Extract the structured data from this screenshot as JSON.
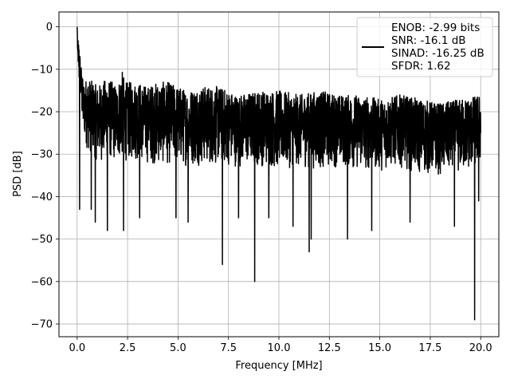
{
  "chart_data": {
    "type": "line",
    "xlabel": "Frequency [MHz]",
    "ylabel": "PSD [dB]",
    "xlim": [
      -0.9,
      20.9
    ],
    "ylim": [
      -73,
      3.5
    ],
    "xticks": [
      0.0,
      2.5,
      5.0,
      7.5,
      10.0,
      12.5,
      15.0,
      17.5,
      20.0
    ],
    "xtick_labels": [
      "0.0",
      "2.5",
      "5.0",
      "7.5",
      "10.0",
      "12.5",
      "15.0",
      "17.5",
      "20.0"
    ],
    "yticks": [
      0,
      -10,
      -20,
      -30,
      -40,
      -50,
      -60,
      -70
    ],
    "ytick_labels": [
      "0",
      "−10",
      "−20",
      "−30",
      "−40",
      "−50",
      "−60",
      "−70"
    ],
    "grid": true,
    "legend": {
      "placement": "top-right",
      "lines": [
        "ENOB: -2.99 bits",
        "SNR: -16.1 dB",
        "SINAD: -16.25 dB",
        "SFDR: 1.62"
      ]
    },
    "series": [
      {
        "color": "#000000",
        "upper_envelope": [
          [
            0.0,
            0
          ],
          [
            0.04,
            -2
          ],
          [
            0.1,
            -4
          ],
          [
            0.2,
            -9
          ],
          [
            0.3,
            -13
          ],
          [
            0.5,
            -12
          ],
          [
            0.8,
            -13
          ],
          [
            1.0,
            -14
          ],
          [
            1.5,
            -12
          ],
          [
            2.0,
            -14
          ],
          [
            2.2,
            -10
          ],
          [
            2.4,
            -13
          ],
          [
            3.0,
            -13
          ],
          [
            3.5,
            -14
          ],
          [
            4.0,
            -13
          ],
          [
            4.5,
            -13
          ],
          [
            5.0,
            -14
          ],
          [
            5.5,
            -15
          ],
          [
            6.0,
            -14
          ],
          [
            7.0,
            -14
          ],
          [
            8.0,
            -16
          ],
          [
            9.0,
            -15
          ],
          [
            10.0,
            -15
          ],
          [
            11.0,
            -16
          ],
          [
            12.0,
            -15
          ],
          [
            13.0,
            -16
          ],
          [
            14.0,
            -16
          ],
          [
            15.0,
            -17
          ],
          [
            16.0,
            -16
          ],
          [
            17.0,
            -17
          ],
          [
            18.0,
            -18
          ],
          [
            19.0,
            -17
          ],
          [
            20.0,
            -16
          ]
        ],
        "lower_envelope": [
          [
            0.0,
            -2
          ],
          [
            0.04,
            -12
          ],
          [
            0.1,
            -17
          ],
          [
            0.2,
            -22
          ],
          [
            0.3,
            -28
          ],
          [
            0.5,
            -32
          ],
          [
            1.0,
            -35
          ],
          [
            2.0,
            -35
          ],
          [
            3.0,
            -35
          ],
          [
            4.0,
            -36
          ],
          [
            5.0,
            -36
          ],
          [
            6.0,
            -36
          ],
          [
            7.0,
            -36
          ],
          [
            8.0,
            -36
          ],
          [
            9.0,
            -36
          ],
          [
            10.0,
            -37
          ],
          [
            11.0,
            -36
          ],
          [
            12.0,
            -37
          ],
          [
            13.0,
            -36
          ],
          [
            14.0,
            -37
          ],
          [
            15.0,
            -37
          ],
          [
            16.0,
            -36
          ],
          [
            17.0,
            -38
          ],
          [
            18.0,
            -38
          ],
          [
            19.0,
            -38
          ],
          [
            20.0,
            -36
          ]
        ],
        "dips": [
          [
            0.12,
            -43
          ],
          [
            0.7,
            -43
          ],
          [
            0.9,
            -46
          ],
          [
            1.5,
            -48
          ],
          [
            2.3,
            -48
          ],
          [
            3.1,
            -45
          ],
          [
            4.9,
            -45
          ],
          [
            5.5,
            -46
          ],
          [
            7.2,
            -56
          ],
          [
            8.0,
            -45
          ],
          [
            8.8,
            -60
          ],
          [
            9.5,
            -45
          ],
          [
            10.7,
            -47
          ],
          [
            11.5,
            -53
          ],
          [
            11.6,
            -50
          ],
          [
            13.4,
            -50
          ],
          [
            14.6,
            -48
          ],
          [
            16.5,
            -46
          ],
          [
            18.7,
            -47
          ],
          [
            19.7,
            -69
          ],
          [
            19.9,
            -41
          ]
        ]
      }
    ]
  }
}
